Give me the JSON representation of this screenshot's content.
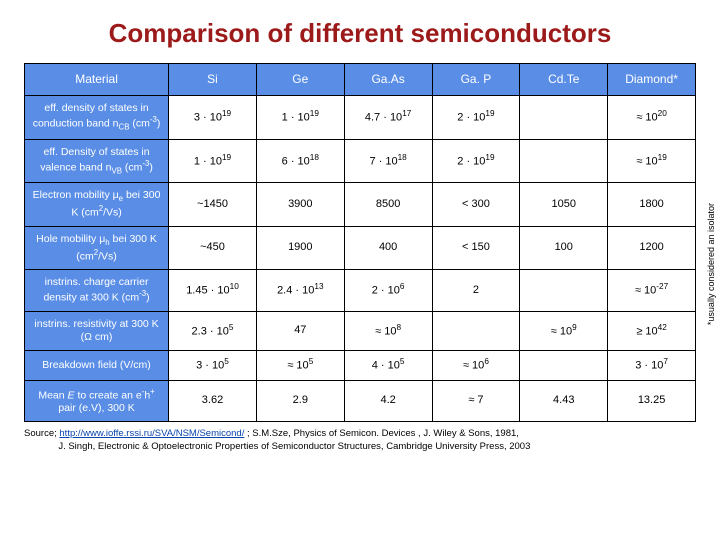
{
  "title": "Comparison of different semiconductors",
  "header_bg": "#5a8ee6",
  "header_color": "#ffffff",
  "cell_bg": "#ffffff",
  "cell_color": "#000000",
  "border_color": "#000000",
  "columns": [
    "Material",
    "Si",
    "Ge",
    "Ga.As",
    "Ga. P",
    "Cd.Te",
    "Diamond*"
  ],
  "rows": [
    {
      "label": "eff. density of states in conduction band n<sub>CB</sub> (cm<sup>-3</sup>)",
      "cells": [
        "3 · 10<sup>19</sup>",
        "1 · 10<sup>19</sup>",
        "4.7 · 10<sup>17</sup>",
        "2 · 10<sup>19</sup>",
        "",
        "≈ 10<sup>20</sup>"
      ]
    },
    {
      "label": "eff. Density of states in valence band n<sub>VB</sub> (cm<sup>-3</sup>)",
      "cells": [
        "1 · 10<sup>19</sup>",
        "6 · 10<sup>18</sup>",
        "7 · 10<sup>18</sup>",
        "2 · 10<sup>19</sup>",
        "",
        "≈ 10<sup>19</sup>"
      ]
    },
    {
      "label": "Electron mobility μ<sub>e</sub> bei 300 K (cm<sup>2</sup>/Vs)",
      "cells": [
        "~1450",
        "3900",
        "8500",
        "< 300",
        "1050",
        "1800"
      ]
    },
    {
      "label": "Hole mobility μ<sub>h</sub> bei 300 K (cm<sup>2</sup>/Vs)",
      "cells": [
        "~450",
        "1900",
        "400",
        "< 150",
        "100",
        "1200"
      ]
    },
    {
      "label": "instrins. charge carrier density at 300 K (cm<sup>-3</sup>)",
      "cells": [
        "1.45 · 10<sup>10</sup>",
        "2.4 · 10<sup>13</sup>",
        "2 · 10<sup>6</sup>",
        "2",
        "",
        "≈ 10<sup>-27</sup>"
      ]
    },
    {
      "label": "instrins. resistivity at  300 K (Ω cm)",
      "cells": [
        "2.3 · 10<sup>5</sup>",
        "47",
        "≈ 10<sup>8</sup>",
        "",
        "≈ 10<sup>9</sup>",
        "≥ 10<sup>42</sup>"
      ]
    },
    {
      "label": "Breakdown field (V/cm)",
      "cells": [
        "3 · 10<sup>5</sup>",
        "≈ 10<sup>5</sup>",
        "4 · 10<sup>5</sup>",
        "≈ 10<sup>6</sup>",
        "",
        "3 · 10<sup>7</sup>"
      ]
    },
    {
      "label": "Mean <i>E</i>  to create an e<sup>-</sup>h<sup>+</sup> pair (e.V), 300 K",
      "cells": [
        "3.62",
        "2.9",
        "4.2",
        "≈ 7",
        "4.43",
        "13.25"
      ]
    }
  ],
  "sidenote": "*usually considered an isolator",
  "source_prefix": "Source; ",
  "source_link_text": "http://www.ioffe.rssi.ru/SVA/NSM/Semicond/",
  "source_rest1": " ; S.M.Sze, Physics of Semicon. Devices , J. Wiley & Sons, 1981,",
  "source_rest2": "J. Singh, Electronic & Optoelectronic Properties of Semiconductor Structures, Cambridge University Press, 2003"
}
